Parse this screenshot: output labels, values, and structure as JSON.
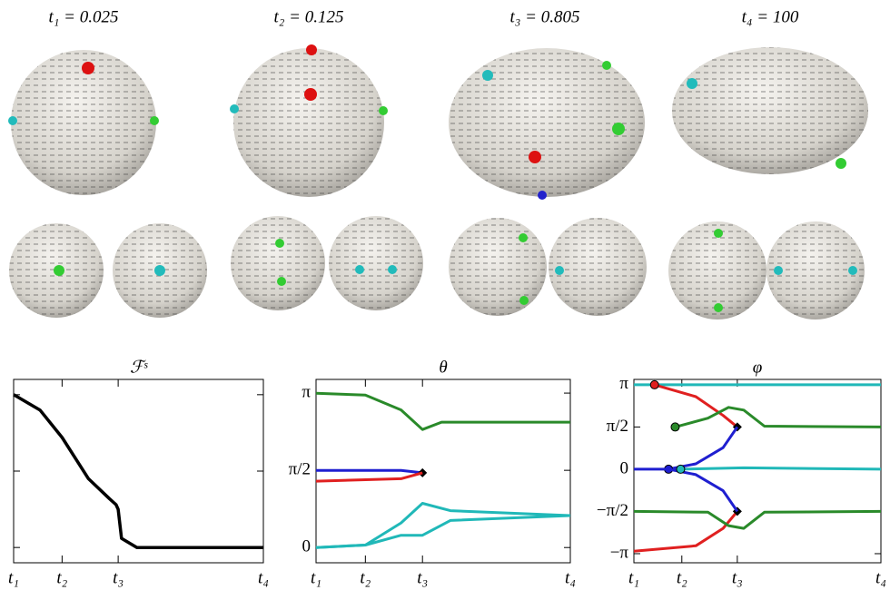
{
  "panels": [
    {
      "title": "t₁ = 0.025"
    },
    {
      "title": "t₂ = 0.125"
    },
    {
      "title": "t₃ = 0.805"
    },
    {
      "title": "t₄ = 100"
    }
  ],
  "chart_data": [
    {
      "type": "line",
      "title": "ℱˢ",
      "xscale": "log",
      "ytick_labels": false,
      "xlim": [
        0.025,
        100
      ],
      "xticks": [
        {
          "value": 0.025,
          "label": "t₁"
        },
        {
          "value": 0.125,
          "label": "t₂"
        },
        {
          "value": 0.805,
          "label": "t₃"
        },
        {
          "value": 100,
          "label": "t₄"
        }
      ],
      "ylim": [
        -0.1,
        1.1
      ],
      "yticks": [
        0,
        0.5,
        1
      ],
      "series": [
        {
          "color": "#000000",
          "width": 3.5,
          "x": [
            0.025,
            0.06,
            0.125,
            0.3,
            0.6,
            0.75,
            0.805,
            0.9,
            1.5,
            10,
            100
          ],
          "values": [
            1.0,
            0.9,
            0.72,
            0.45,
            0.32,
            0.28,
            0.25,
            0.06,
            0.0,
            0.0,
            0.0
          ]
        }
      ]
    },
    {
      "type": "line",
      "title": "θ",
      "xscale": "log",
      "xlim": [
        0.025,
        100
      ],
      "xticks": [
        {
          "value": 0.025,
          "label": "t₁"
        },
        {
          "value": 0.125,
          "label": "t₂"
        },
        {
          "value": 0.805,
          "label": "t₃"
        },
        {
          "value": 100,
          "label": "t₄"
        }
      ],
      "ylim": [
        -0.31,
        3.42
      ],
      "yticks": [
        0,
        {
          "value": 1.5708,
          "label": "π/2"
        },
        {
          "value": 3.1416,
          "label": "π"
        }
      ],
      "series": [
        {
          "color": "#2a8a2a",
          "x": [
            0.025,
            0.125,
            0.4,
            0.805,
            1.5,
            100
          ],
          "values": [
            3.14,
            3.1,
            2.8,
            2.4,
            2.55,
            2.55
          ]
        },
        {
          "color": "#1f1fd0",
          "marker_end": true,
          "x": [
            0.025,
            0.4,
            0.805
          ],
          "values": [
            1.57,
            1.57,
            1.52
          ]
        },
        {
          "color": "#e02020",
          "x": [
            0.025,
            0.4,
            0.805
          ],
          "values": [
            1.35,
            1.4,
            1.52
          ]
        },
        {
          "color": "#20b8b8",
          "x": [
            0.025,
            0.125,
            0.4,
            0.805,
            2,
            100
          ],
          "values": [
            0,
            0.05,
            0.5,
            0.9,
            0.75,
            0.65
          ]
        },
        {
          "color": "#20b8b8",
          "x": [
            0.025,
            0.125,
            0.4,
            0.805,
            2,
            100
          ],
          "values": [
            0,
            0.05,
            0.25,
            0.25,
            0.55,
            0.65
          ]
        }
      ]
    },
    {
      "type": "line",
      "title": "φ",
      "xscale": "log",
      "xlim": [
        0.025,
        100
      ],
      "xticks": [
        {
          "value": 0.025,
          "label": "t₁"
        },
        {
          "value": 0.125,
          "label": "t₂"
        },
        {
          "value": 0.805,
          "label": "t₃"
        },
        {
          "value": 100,
          "label": "t₄"
        }
      ],
      "ylim": [
        -3.48,
        3.34
      ],
      "yticks": [
        {
          "value": -3.1416,
          "label": "−π"
        },
        {
          "value": -1.5708,
          "label": "−π/2"
        },
        0,
        {
          "value": 1.5708,
          "label": "π/2"
        },
        {
          "value": 3.1416,
          "label": "π"
        }
      ],
      "series": [
        {
          "color": "#20b8b8",
          "x": [
            0.025,
            100
          ],
          "values": [
            3.14,
            3.14
          ]
        },
        {
          "color": "#e02020",
          "marker_start": true,
          "marker_end": true,
          "x": [
            0.05,
            0.2,
            0.5,
            0.805
          ],
          "values": [
            3.14,
            2.7,
            2.0,
            1.57
          ]
        },
        {
          "color": "#e02020",
          "marker_end": true,
          "x": [
            0.025,
            0.2,
            0.5,
            0.805
          ],
          "values": [
            -3.05,
            -2.85,
            -2.2,
            -1.57
          ]
        },
        {
          "color": "#1f1fd0",
          "marker_start": true,
          "x": [
            0.08,
            0.2,
            0.5,
            0.805
          ],
          "values": [
            0,
            0.2,
            0.8,
            1.57
          ]
        },
        {
          "color": "#1f1fd0",
          "x": [
            0.025,
            0.08,
            0.2,
            0.5,
            0.805
          ],
          "values": [
            0,
            0,
            -0.2,
            -0.8,
            -1.57
          ]
        },
        {
          "color": "#2a8a2a",
          "marker_start": true,
          "x": [
            0.1,
            0.3,
            0.6,
            1.0,
            2,
            100
          ],
          "values": [
            1.57,
            1.9,
            2.3,
            2.2,
            1.6,
            1.57
          ]
        },
        {
          "color": "#2a8a2a",
          "x": [
            0.025,
            0.3,
            0.6,
            1.0,
            2,
            100
          ],
          "values": [
            -1.57,
            -1.6,
            -2.1,
            -2.2,
            -1.6,
            -1.57
          ]
        },
        {
          "color": "#20b8b8",
          "marker_start": true,
          "x": [
            0.12,
            1,
            100
          ],
          "values": [
            0,
            0.05,
            0
          ]
        }
      ]
    }
  ]
}
